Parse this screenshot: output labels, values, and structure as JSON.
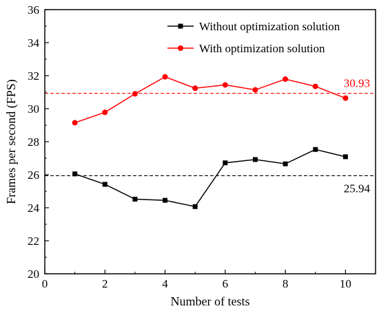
{
  "chart_data": {
    "type": "line",
    "xlabel": "Number of tests",
    "ylabel": "Frames per second (FPS)",
    "xlim": [
      0,
      11
    ],
    "ylim": [
      20,
      36
    ],
    "xticks": [
      0,
      2,
      4,
      6,
      8,
      10
    ],
    "yticks": [
      20,
      22,
      24,
      26,
      28,
      30,
      32,
      34,
      36
    ],
    "grid": false,
    "legend_position": "top-right",
    "x": [
      1,
      2,
      3,
      4,
      5,
      6,
      7,
      8,
      9,
      10
    ],
    "series": [
      {
        "name": "Without optimization solution",
        "color": "#000000",
        "marker": "square",
        "values": [
          26.05,
          25.42,
          24.52,
          24.45,
          24.07,
          26.72,
          26.92,
          26.66,
          27.53,
          27.09
        ]
      },
      {
        "name": "With optimization solution",
        "color": "#ff0000",
        "marker": "circle",
        "values": [
          29.15,
          29.78,
          30.9,
          31.93,
          31.24,
          31.44,
          31.14,
          31.79,
          31.35,
          30.64
        ]
      }
    ],
    "reference_lines": [
      {
        "value": 30.93,
        "label": "30.93",
        "color": "#ff0000",
        "style": "dashed"
      },
      {
        "value": 25.94,
        "label": "25.94",
        "color": "#000000",
        "style": "dashed"
      }
    ]
  }
}
